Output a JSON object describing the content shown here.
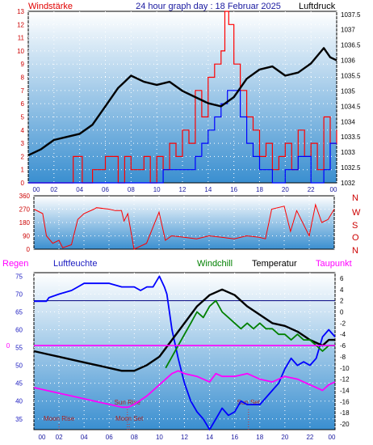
{
  "header": {
    "left_label": "Windstärke",
    "title": "24 hour graph day : 18 Februar 2025",
    "right_label": "Luftdruck"
  },
  "colors": {
    "wind": "#ff0000",
    "gust": "#0000ff",
    "pressure": "#000000",
    "direction": "#ff0000",
    "humidity": "#0000ff",
    "temperature": "#000000",
    "windchill": "#008000",
    "dewpoint": "#ff00ff",
    "panel_top": "#ffffff",
    "panel_bottom": "#3a8fd0"
  },
  "chart_data": [
    {
      "type": "line",
      "id": "wind_pressure",
      "x_ticks": [
        "00",
        "02",
        "04",
        "06",
        "08",
        "10",
        "12",
        "14",
        "16",
        "18",
        "20",
        "22",
        "00"
      ],
      "left_axis": {
        "ylim": [
          0,
          13
        ],
        "ticks": [
          "0",
          "1",
          "2",
          "3",
          "4",
          "5",
          "6",
          "7",
          "8",
          "9",
          "10",
          "11",
          "12",
          "13"
        ]
      },
      "right_axis": {
        "ylim": [
          1032.0,
          1037.6
        ],
        "ticks": [
          "1032",
          "1032.5",
          "1033",
          "1033.5",
          "1034",
          "1034.5",
          "1035",
          "1035.5",
          "1036",
          "1036.5",
          "1037",
          "1037.5"
        ]
      },
      "series": [
        {
          "name": "Windstärke",
          "axis": "left",
          "x": [
            0,
            2,
            3.5,
            4.2,
            5,
            6,
            7,
            7.5,
            8,
            9,
            9.5,
            10,
            10.5,
            11,
            11.5,
            12,
            12.5,
            13,
            13.5,
            14,
            14.5,
            15,
            15.3,
            15.6,
            16,
            16.5,
            17,
            17.5,
            18,
            18.5,
            19,
            19.5,
            20,
            20.5,
            21,
            21.5,
            22,
            22.5,
            23,
            23.5,
            24
          ],
          "y": [
            0,
            0,
            2,
            0,
            1,
            2,
            0,
            2,
            1,
            2,
            0,
            2,
            1,
            3,
            2,
            4,
            3,
            7,
            5,
            8,
            9,
            10,
            13,
            12,
            9,
            7,
            5,
            4,
            2,
            3,
            1,
            2,
            3,
            1,
            4,
            2,
            3,
            1,
            5,
            3,
            4
          ]
        },
        {
          "name": "Böen",
          "axis": "left",
          "x": [
            0,
            10,
            10.5,
            11,
            12,
            13,
            13.5,
            14,
            14.5,
            15,
            15.5,
            16,
            16.5,
            17,
            17.5,
            18,
            19,
            20,
            21,
            22,
            23,
            23.5,
            24
          ],
          "y": [
            0,
            0,
            1,
            1,
            1,
            2,
            3,
            4,
            5,
            6,
            7,
            7,
            5,
            3,
            2,
            1,
            0,
            1,
            2,
            0,
            1,
            3,
            3
          ]
        },
        {
          "name": "Luftdruck",
          "axis": "right",
          "x": [
            0,
            1,
            2,
            3,
            4,
            5,
            6,
            7,
            7.5,
            8,
            9,
            10,
            11,
            12,
            13,
            14,
            15,
            16,
            17,
            18,
            19,
            20,
            21,
            22,
            23,
            23.5,
            24
          ],
          "y": [
            1032.9,
            1033.1,
            1033.4,
            1033.5,
            1033.6,
            1033.9,
            1034.5,
            1035.1,
            1035.3,
            1035.5,
            1035.3,
            1035.2,
            1035.3,
            1035.0,
            1034.8,
            1034.6,
            1034.5,
            1034.8,
            1035.4,
            1035.7,
            1035.8,
            1035.5,
            1035.6,
            1035.9,
            1036.4,
            1036.1,
            1036.0
          ]
        }
      ]
    },
    {
      "type": "line",
      "id": "wind_direction",
      "x_ticks": [],
      "left_axis": {
        "ylim": [
          0,
          360
        ],
        "ticks": [
          "0",
          "90",
          "180",
          "270",
          "360"
        ]
      },
      "right_labels": [
        "N",
        "W",
        "S",
        "O",
        "N"
      ],
      "series": [
        {
          "name": "Windrichtung",
          "x": [
            0,
            0.7,
            1,
            1.5,
            2,
            2.3,
            3,
            3.5,
            4,
            4.8,
            5,
            6,
            6.5,
            7,
            7.2,
            7.5,
            8,
            9,
            10,
            10.5,
            11,
            12,
            13,
            14,
            15,
            16,
            17,
            18,
            18.5,
            19,
            20,
            20.5,
            21,
            22,
            22.5,
            23,
            23.5,
            24
          ],
          "y": [
            270,
            240,
            90,
            40,
            60,
            10,
            30,
            200,
            240,
            270,
            280,
            270,
            260,
            260,
            190,
            240,
            0,
            40,
            250,
            60,
            90,
            80,
            70,
            90,
            80,
            70,
            90,
            80,
            70,
            270,
            290,
            120,
            260,
            90,
            300,
            180,
            200,
            270
          ]
        }
      ]
    },
    {
      "type": "line",
      "id": "humidity_temperature",
      "x_ticks": [
        "00",
        "02",
        "04",
        "06",
        "08",
        "10",
        "12",
        "14",
        "16",
        "18",
        "20",
        "22",
        "00"
      ],
      "left_axis": {
        "label": "Luftfeuchte",
        "ylim": [
          32,
          76
        ],
        "ticks": [
          "35",
          "40",
          "45",
          "50",
          "55",
          "60",
          "65",
          "70",
          "75"
        ]
      },
      "right_axis": {
        "label": "Temperatur",
        "ylim": [
          -21,
          7
        ],
        "ticks": [
          "6",
          "4",
          "2",
          "0",
          "-2",
          "-4",
          "-6",
          "-8",
          "-10",
          "-12",
          "-14",
          "-16",
          "-18",
          "-20"
        ]
      },
      "rain_axis_label": "Regen",
      "rain_tick": "0",
      "series": [
        {
          "name": "Luftfeuchte",
          "axis": "left",
          "x": [
            0,
            1,
            1.2,
            2,
            3,
            3.5,
            4,
            5,
            6,
            7,
            8,
            8.5,
            9,
            9.5,
            10,
            10.4,
            10.6,
            11,
            11.5,
            12,
            12.5,
            13,
            13.5,
            14,
            14.5,
            15,
            15.5,
            16,
            16.5,
            17,
            18,
            19,
            19.5,
            20,
            20.5,
            21,
            21.5,
            22,
            22.5,
            23,
            23.5,
            24
          ],
          "y": [
            68,
            68,
            69,
            70,
            71,
            72,
            73,
            73,
            73,
            72,
            72,
            71,
            72,
            72,
            75,
            72,
            70,
            60,
            52,
            45,
            40,
            37,
            35,
            32,
            35,
            38,
            36,
            37,
            40,
            39,
            39,
            43,
            45,
            49,
            52,
            50,
            51,
            50,
            52,
            58,
            60,
            58
          ]
        },
        {
          "name": "Temperatur",
          "axis": "right",
          "x": [
            0,
            1,
            2,
            3,
            4,
            5,
            6,
            7,
            8,
            9,
            10,
            11,
            12,
            13,
            14,
            15,
            16,
            17,
            18,
            19,
            20,
            21,
            22,
            23,
            23.5,
            24
          ],
          "y": [
            -7,
            -7.5,
            -8,
            -8.5,
            -9,
            -9.5,
            -10,
            -10.5,
            -10.5,
            -9.5,
            -8,
            -5,
            -2,
            1,
            3,
            4,
            3,
            1,
            -0.5,
            -2,
            -2.5,
            -3.5,
            -5,
            -6,
            -5,
            -5
          ]
        },
        {
          "name": "Windchill",
          "axis": "right",
          "x": [
            10.5,
            11,
            11.5,
            12,
            12.5,
            13,
            13.5,
            14,
            14.5,
            15,
            15.5,
            16,
            16.5,
            17,
            17.5,
            18,
            18.5,
            19,
            19.5,
            20,
            20.5,
            21,
            21.5,
            22,
            22.5,
            23,
            23.5,
            24
          ],
          "y": [
            -10,
            -8,
            -6,
            -4,
            -2,
            0,
            -1,
            1,
            2,
            0,
            -1,
            -2,
            -3,
            -2,
            -3,
            -2,
            -3,
            -3,
            -4,
            -4,
            -5,
            -4,
            -5,
            -5,
            -6,
            -7,
            -6,
            -6
          ]
        },
        {
          "name": "Taupunkt",
          "axis": "right",
          "x": [
            0,
            1,
            2,
            3,
            4,
            5,
            6,
            7,
            7.5,
            8,
            9,
            10,
            10.5,
            11,
            11.5,
            12,
            13,
            14,
            14.5,
            15,
            16,
            17,
            18,
            19,
            20,
            21,
            22,
            23,
            23.5,
            24
          ],
          "y": [
            -13.5,
            -14,
            -14.5,
            -15,
            -15.5,
            -16,
            -16.5,
            -17,
            -17,
            -16.5,
            -15,
            -13,
            -12,
            -11,
            -10.5,
            -11,
            -11.5,
            -12.5,
            -11,
            -11.5,
            -11.5,
            -11,
            -12,
            -12.5,
            -11.5,
            -12,
            -13,
            -14,
            -13,
            -12.5
          ]
        },
        {
          "name": "Regen",
          "axis": "rain",
          "x": [
            0,
            24
          ],
          "y": [
            0,
            0
          ]
        }
      ],
      "annotations": [
        {
          "text": "Moon Rise",
          "x": 2
        },
        {
          "text": "Sun Rise",
          "x": 7.45
        },
        {
          "text": "Moon Set",
          "x": 7.6
        },
        {
          "text": "Sun Set",
          "x": 17.1
        }
      ],
      "reference_line": {
        "axis": "right",
        "value": 2
      }
    }
  ]
}
